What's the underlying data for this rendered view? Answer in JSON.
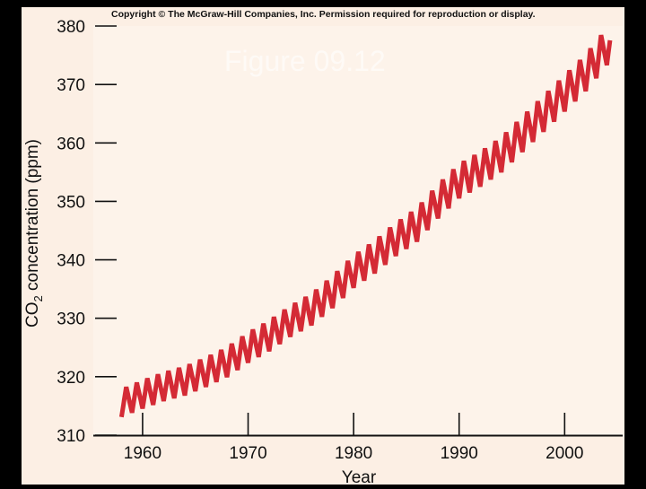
{
  "header": {
    "copyright": "Copyright © The McGraw-Hill Companies, Inc. Permission required for reproduction or display.",
    "figure_label": "Figure 09.12"
  },
  "colors": {
    "panel_background": "#fcefe4",
    "plot_background": "#fdf3ea",
    "line": "#d42a35",
    "axis": "#111111",
    "page_background": "#000000"
  },
  "chart_data": {
    "type": "line",
    "title": "",
    "xlabel": "Year",
    "ylabel_parts": [
      "CO",
      "2",
      " concentration (ppm)"
    ],
    "xlim": [
      1955.5,
      2005.5
    ],
    "ylim": [
      310,
      380
    ],
    "x_ticks": [
      "1960",
      "1970",
      "1980",
      "1990",
      "2000"
    ],
    "y_ticks": [
      "310",
      "320",
      "330",
      "340",
      "350",
      "360",
      "370",
      "380"
    ],
    "grid": false,
    "legend": "none",
    "series": [
      {
        "trend": [
          [
            1958,
            315.5
          ],
          [
            1960,
            317.0
          ],
          [
            1962,
            318.3
          ],
          [
            1964,
            319.3
          ],
          [
            1966,
            320.8
          ],
          [
            1968,
            322.5
          ],
          [
            1970,
            325.0
          ],
          [
            1972,
            327.0
          ],
          [
            1974,
            329.5
          ],
          [
            1976,
            331.5
          ],
          [
            1978,
            334.5
          ],
          [
            1980,
            338.0
          ],
          [
            1982,
            340.5
          ],
          [
            1984,
            343.5
          ],
          [
            1986,
            346.0
          ],
          [
            1988,
            350.0
          ],
          [
            1990,
            353.5
          ],
          [
            1992,
            355.5
          ],
          [
            1994,
            358.0
          ],
          [
            1996,
            361.5
          ],
          [
            1998,
            365.0
          ],
          [
            2000,
            368.5
          ],
          [
            2002,
            372.0
          ],
          [
            2004,
            376.5
          ]
        ],
        "seasonal_amplitude": [
          [
            1958,
            2.4
          ],
          [
            1980,
            2.8
          ],
          [
            2004,
            3.2
          ]
        ],
        "start_year": 1958.0,
        "end_year": 2004.3
      }
    ]
  }
}
